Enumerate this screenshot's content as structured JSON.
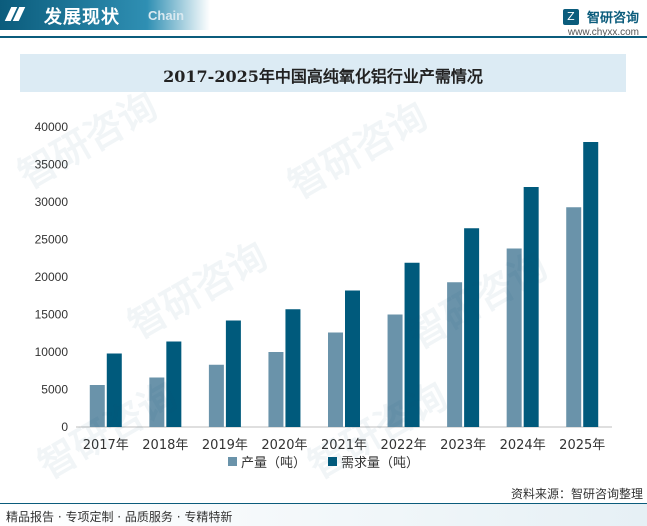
{
  "header": {
    "title": "发展现状",
    "subtitle": "Chain",
    "brand_name": "智研咨询",
    "brand_url": "www.chyxx.com",
    "logo_glyph": "Z"
  },
  "watermark_text": "智研咨询",
  "source": "资料来源：智研咨询整理",
  "footer": "精品报告 · 专项定制 · 品质服务 · 专精特新",
  "colors": {
    "production": "#6a93aa",
    "demand": "#005a7c",
    "header": "#0b5c7c",
    "title_bg": "#dcebf4"
  },
  "chart_data": {
    "type": "bar",
    "title": "2017-2025年中国高纯氧化铝行业产需情况",
    "categories": [
      "2017年",
      "2018年",
      "2019年",
      "2020年",
      "2021年",
      "2022年",
      "2023年",
      "2024年",
      "2025年"
    ],
    "series": [
      {
        "name": "产量（吨）",
        "values": [
          5600,
          6600,
          8300,
          10000,
          12600,
          15000,
          19300,
          23800,
          29300
        ]
      },
      {
        "name": "需求量（吨）",
        "values": [
          9800,
          11400,
          14200,
          15700,
          18200,
          21900,
          26500,
          32000,
          38000
        ]
      }
    ],
    "yticks": [
      0,
      5000,
      10000,
      15000,
      20000,
      25000,
      30000,
      35000,
      40000
    ],
    "ylim": [
      0,
      40000
    ],
    "xlabel": "",
    "ylabel": "",
    "legend_position": "bottom",
    "grid": false
  }
}
